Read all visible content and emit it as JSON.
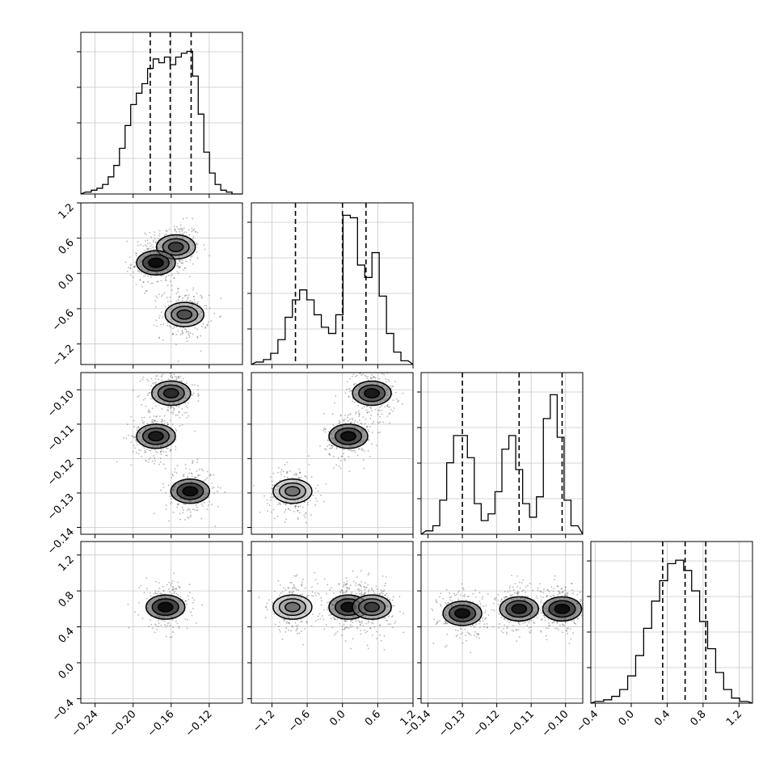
{
  "chart_data": {
    "type": "corner",
    "title": "",
    "variables": [
      {
        "index": 0,
        "range": [
          -0.255,
          -0.085
        ],
        "ticks": [
          "-0.24",
          "-0.20",
          "-0.16",
          "-0.12"
        ],
        "tick_values": [
          -0.24,
          -0.2,
          -0.16,
          -0.12
        ],
        "quantiles": [
          -0.182,
          -0.161,
          -0.139
        ],
        "hist": [
          1,
          2,
          3,
          5,
          9,
          15,
          24,
          36,
          47,
          53,
          58,
          66,
          71,
          69,
          72,
          68,
          72,
          74,
          75,
          62,
          42,
          22,
          11,
          5,
          2,
          1,
          0
        ],
        "hist_ymax": 85
      },
      {
        "index": 1,
        "range": [
          -1.55,
          1.2
        ],
        "ticks": [
          "-1.2",
          "-0.6",
          "0.0",
          "0.6",
          "1.2"
        ],
        "tick_values": [
          -1.2,
          -0.6,
          0.0,
          0.6,
          1.2
        ],
        "quantiles": [
          -0.8,
          0.0,
          0.4
        ],
        "hist": [
          2,
          4,
          9,
          20,
          38,
          52,
          60,
          52,
          40,
          30,
          25,
          40,
          120,
          118,
          80,
          70,
          90,
          55,
          25,
          10,
          3
        ],
        "hist_ymax": 130
      },
      {
        "index": 2,
        "range": [
          -0.142,
          -0.095
        ],
        "ticks": [
          "-0.14",
          "-0.13",
          "-0.12",
          "-0.11",
          "-0.10"
        ],
        "tick_values": [
          -0.14,
          -0.13,
          -0.12,
          -0.11,
          -0.1
        ],
        "quantiles": [
          -0.13,
          -0.1135,
          -0.101
        ],
        "hist": [
          2,
          5,
          20,
          42,
          58,
          58,
          45,
          18,
          8,
          12,
          25,
          50,
          58,
          38,
          18,
          10,
          22,
          68,
          82,
          57,
          20,
          5
        ],
        "hist_ymax": 95
      },
      {
        "index": 3,
        "range": [
          -0.45,
          1.35
        ],
        "ticks": [
          "-0.4",
          "0.0",
          "0.4",
          "0.8",
          "1.2"
        ],
        "tick_values": [
          -0.4,
          0.0,
          0.4,
          0.8,
          1.2
        ],
        "quantiles": [
          0.35,
          0.6,
          0.83
        ],
        "hist": [
          1,
          2,
          4,
          8,
          16,
          28,
          44,
          60,
          72,
          82,
          84,
          78,
          66,
          48,
          32,
          18,
          8,
          3,
          1
        ],
        "hist_ymax": 95
      }
    ],
    "panels": [
      {
        "row": 1,
        "col": 0,
        "modes": [
          {
            "x": -0.155,
            "y": 0.45,
            "level": 0.6
          },
          {
            "x": -0.176,
            "y": 0.18,
            "level": 0.9
          },
          {
            "x": -0.146,
            "y": -0.7,
            "level": 0.5
          }
        ]
      },
      {
        "row": 2,
        "col": 0,
        "modes": [
          {
            "x": -0.16,
            "y": -0.101,
            "level": 0.7
          },
          {
            "x": -0.176,
            "y": -0.1135,
            "level": 0.8
          },
          {
            "x": -0.14,
            "y": -0.1295,
            "level": 0.9
          }
        ]
      },
      {
        "row": 2,
        "col": 1,
        "modes": [
          {
            "x": 0.5,
            "y": -0.101,
            "level": 0.8
          },
          {
            "x": 0.1,
            "y": -0.1135,
            "level": 0.85
          },
          {
            "x": -0.85,
            "y": -0.1295,
            "level": 0.3
          }
        ]
      },
      {
        "row": 3,
        "col": 0,
        "modes": [
          {
            "x": -0.166,
            "y": 0.62,
            "level": 0.9
          }
        ]
      },
      {
        "row": 3,
        "col": 1,
        "modes": [
          {
            "x": -0.85,
            "y": 0.62,
            "level": 0.3
          },
          {
            "x": 0.1,
            "y": 0.62,
            "level": 0.85
          },
          {
            "x": 0.5,
            "y": 0.62,
            "level": 0.6
          }
        ]
      },
      {
        "row": 3,
        "col": 2,
        "modes": [
          {
            "x": -0.13,
            "y": 0.55,
            "level": 0.85
          },
          {
            "x": -0.1135,
            "y": 0.6,
            "level": 0.8
          },
          {
            "x": -0.101,
            "y": 0.6,
            "level": 0.9
          }
        ]
      }
    ],
    "grid": true,
    "colors": {
      "contour": "#000000",
      "density": "#2f2f2f",
      "hist": "#000000",
      "grid": "#c8c8c8"
    }
  }
}
